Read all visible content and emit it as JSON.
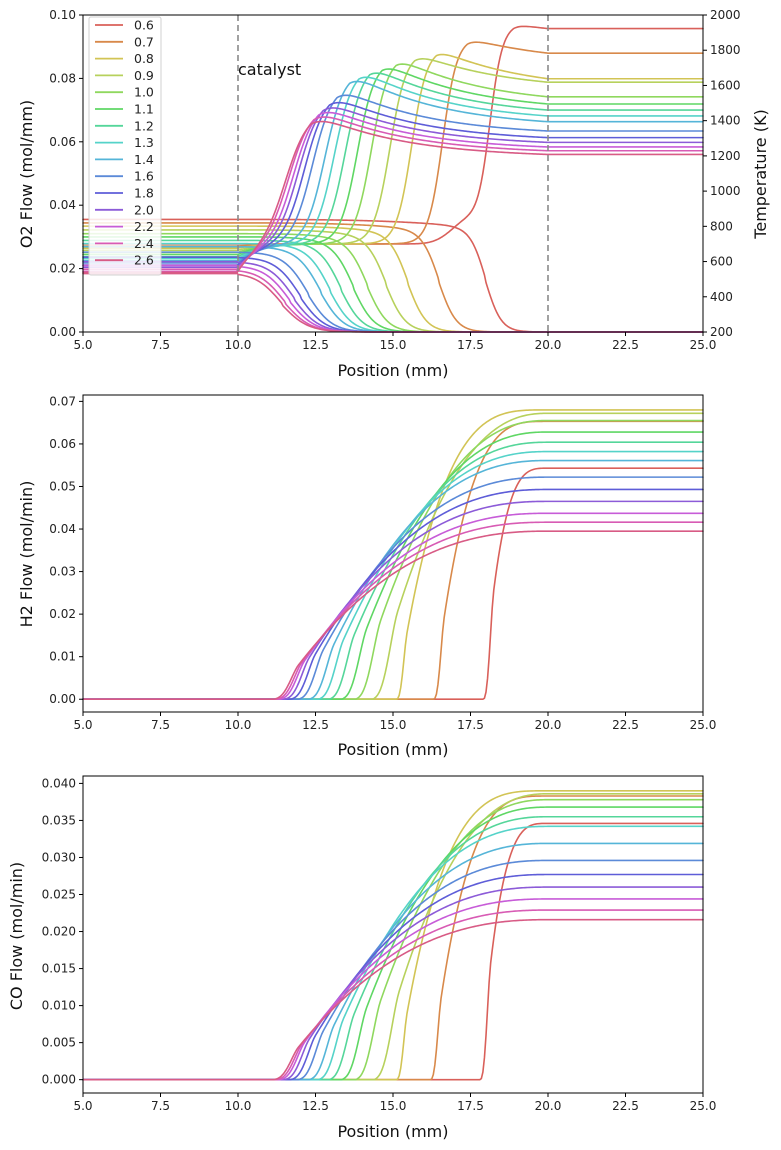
{
  "chart_data": [
    {
      "type": "line",
      "xlabel": "Position (mm)",
      "ylabel": "O2 Flow (mol/mm)",
      "y2label": "Temperature (K)",
      "xlim": [
        5,
        25
      ],
      "ylim": [
        0,
        0.1
      ],
      "y2lim": [
        200,
        2000
      ],
      "xticks": [
        "5.0",
        "7.5",
        "10.0",
        "12.5",
        "15.0",
        "17.5",
        "20.0",
        "22.5",
        "25.0"
      ],
      "yticks": [
        "0.00",
        "0.02",
        "0.04",
        "0.06",
        "0.08",
        "0.10"
      ],
      "y2ticks": [
        "200",
        "400",
        "600",
        "800",
        "1000",
        "1200",
        "1400",
        "1600",
        "1800",
        "2000"
      ],
      "vlines": [
        10,
        20
      ],
      "annotation": "catalyst",
      "legend_position": "upper-left",
      "series": [
        {
          "name": "0.6",
          "color": "#d9605a",
          "o2_inlet": 0.0355,
          "ignition": 18.0,
          "steep": 4.0,
          "temp_inlet": 700,
          "temp_peak": 1950,
          "temp_end": 1865
        },
        {
          "name": "0.7",
          "color": "#d8894a",
          "o2_inlet": 0.0344,
          "ignition": 16.5,
          "steep": 3.6,
          "temp_inlet": 688,
          "temp_peak": 1870,
          "temp_end": 1725
        },
        {
          "name": "0.8",
          "color": "#d2c455",
          "o2_inlet": 0.0334,
          "ignition": 15.5,
          "steep": 3.4,
          "temp_inlet": 676,
          "temp_peak": 1810,
          "temp_end": 1570
        },
        {
          "name": "0.9",
          "color": "#b7d15c",
          "o2_inlet": 0.0322,
          "ignition": 14.8,
          "steep": 3.2,
          "temp_inlet": 664,
          "temp_peak": 1788,
          "temp_end": 1570
        },
        {
          "name": "1.0",
          "color": "#8fd85e",
          "o2_inlet": 0.031,
          "ignition": 14.2,
          "steep": 3.1,
          "temp_inlet": 652,
          "temp_peak": 1765,
          "temp_end": 1485
        },
        {
          "name": "1.1",
          "color": "#5fd764",
          "o2_inlet": 0.03,
          "ignition": 13.75,
          "steep": 3.0,
          "temp_inlet": 640,
          "temp_peak": 1740,
          "temp_end": 1450
        },
        {
          "name": "1.2",
          "color": "#55d69a",
          "o2_inlet": 0.0289,
          "ignition": 13.35,
          "steep": 2.9,
          "temp_inlet": 628,
          "temp_peak": 1720,
          "temp_end": 1420
        },
        {
          "name": "1.3",
          "color": "#55d3c9",
          "o2_inlet": 0.0279,
          "ignition": 13.0,
          "steep": 2.8,
          "temp_inlet": 616,
          "temp_peak": 1700,
          "temp_end": 1390
        },
        {
          "name": "1.4",
          "color": "#55b5d8",
          "o2_inlet": 0.0269,
          "ignition": 12.7,
          "steep": 2.7,
          "temp_inlet": 604,
          "temp_peak": 1680,
          "temp_end": 1360
        },
        {
          "name": "1.6",
          "color": "#5b8ad8",
          "o2_inlet": 0.0252,
          "ignition": 12.3,
          "steep": 2.6,
          "temp_inlet": 592,
          "temp_peak": 1600,
          "temp_end": 1315
        },
        {
          "name": "1.8",
          "color": "#5e5dd8",
          "o2_inlet": 0.0236,
          "ignition": 12.05,
          "steep": 2.5,
          "temp_inlet": 580,
          "temp_peak": 1560,
          "temp_end": 1280
        },
        {
          "name": "2.0",
          "color": "#8c5bd8",
          "o2_inlet": 0.0222,
          "ignition": 11.85,
          "steep": 2.45,
          "temp_inlet": 568,
          "temp_peak": 1530,
          "temp_end": 1255
        },
        {
          "name": "2.2",
          "color": "#c75cd8",
          "o2_inlet": 0.021,
          "ignition": 11.7,
          "steep": 2.4,
          "temp_inlet": 556,
          "temp_peak": 1505,
          "temp_end": 1230
        },
        {
          "name": "2.4",
          "color": "#d85bb4",
          "o2_inlet": 0.0198,
          "ignition": 11.55,
          "steep": 2.35,
          "temp_inlet": 544,
          "temp_peak": 1480,
          "temp_end": 1210
        },
        {
          "name": "2.6",
          "color": "#d85b85",
          "o2_inlet": 0.0188,
          "ignition": 11.45,
          "steep": 2.3,
          "temp_inlet": 532,
          "temp_peak": 1455,
          "temp_end": 1190
        }
      ]
    },
    {
      "type": "line",
      "xlabel": "Position (mm)",
      "ylabel": "H2 Flow (mol/min)",
      "xlim": [
        5,
        25
      ],
      "ylim": [
        -0.003,
        0.0715
      ],
      "xticks": [
        "5.0",
        "7.5",
        "10.0",
        "12.5",
        "15.0",
        "17.5",
        "20.0",
        "22.5",
        "25.0"
      ],
      "yticks": [
        "0.00",
        "0.01",
        "0.02",
        "0.03",
        "0.04",
        "0.05",
        "0.06",
        "0.07"
      ],
      "series": [
        {
          "name": "0.6",
          "color": "#d9605a",
          "start": 17.9,
          "final": 0.0543
        },
        {
          "name": "0.7",
          "color": "#d8894a",
          "start": 16.3,
          "final": 0.0653
        },
        {
          "name": "0.8",
          "color": "#d2c455",
          "start": 15.1,
          "final": 0.068
        },
        {
          "name": "0.9",
          "color": "#b7d15c",
          "start": 14.35,
          "final": 0.0672
        },
        {
          "name": "1.0",
          "color": "#8fd85e",
          "start": 13.8,
          "final": 0.0655
        },
        {
          "name": "1.1",
          "color": "#5fd764",
          "start": 13.35,
          "final": 0.0628
        },
        {
          "name": "1.2",
          "color": "#55d69a",
          "start": 12.95,
          "final": 0.0604
        },
        {
          "name": "1.3",
          "color": "#55d3c9",
          "start": 12.6,
          "final": 0.0582
        },
        {
          "name": "1.4",
          "color": "#55b5d8",
          "start": 12.3,
          "final": 0.0561
        },
        {
          "name": "1.6",
          "color": "#5b8ad8",
          "start": 11.95,
          "final": 0.0522
        },
        {
          "name": "1.8",
          "color": "#5e5dd8",
          "start": 11.7,
          "final": 0.0493
        },
        {
          "name": "2.0",
          "color": "#8c5bd8",
          "start": 11.5,
          "final": 0.0465
        },
        {
          "name": "2.2",
          "color": "#c75cd8",
          "start": 11.35,
          "final": 0.0437
        },
        {
          "name": "2.4",
          "color": "#d85bb4",
          "start": 11.25,
          "final": 0.0416
        },
        {
          "name": "2.6",
          "color": "#d85b85",
          "start": 11.15,
          "final": 0.0395
        }
      ]
    },
    {
      "type": "line",
      "xlabel": "Position (mm)",
      "ylabel": "CO Flow (mol/min)",
      "xlim": [
        5,
        25
      ],
      "ylim": [
        -0.0018,
        0.041
      ],
      "xticks": [
        "5.0",
        "7.5",
        "10.0",
        "12.5",
        "15.0",
        "17.5",
        "20.0",
        "22.5",
        "25.0"
      ],
      "yticks": [
        "0.000",
        "0.005",
        "0.010",
        "0.015",
        "0.020",
        "0.025",
        "0.030",
        "0.035",
        "0.040"
      ],
      "series": [
        {
          "name": "0.6",
          "color": "#d9605a",
          "start": 17.8,
          "final": 0.0346
        },
        {
          "name": "0.7",
          "color": "#d8894a",
          "start": 16.2,
          "final": 0.0383
        },
        {
          "name": "0.8",
          "color": "#d2c455",
          "start": 15.1,
          "final": 0.039
        },
        {
          "name": "0.9",
          "color": "#b7d15c",
          "start": 14.4,
          "final": 0.0386
        },
        {
          "name": "1.0",
          "color": "#8fd85e",
          "start": 13.8,
          "final": 0.0378
        },
        {
          "name": "1.1",
          "color": "#5fd764",
          "start": 13.35,
          "final": 0.0368
        },
        {
          "name": "1.2",
          "color": "#55d69a",
          "start": 12.95,
          "final": 0.0355
        },
        {
          "name": "1.3",
          "color": "#55d3c9",
          "start": 12.6,
          "final": 0.0342
        },
        {
          "name": "1.4",
          "color": "#55b5d8",
          "start": 12.3,
          "final": 0.0319
        },
        {
          "name": "1.6",
          "color": "#5b8ad8",
          "start": 11.95,
          "final": 0.0296
        },
        {
          "name": "1.8",
          "color": "#5e5dd8",
          "start": 11.7,
          "final": 0.0277
        },
        {
          "name": "2.0",
          "color": "#8c5bd8",
          "start": 11.5,
          "final": 0.026
        },
        {
          "name": "2.2",
          "color": "#c75cd8",
          "start": 11.35,
          "final": 0.0244
        },
        {
          "name": "2.4",
          "color": "#d85bb4",
          "start": 11.25,
          "final": 0.0229
        },
        {
          "name": "2.6",
          "color": "#d85b85",
          "start": 11.15,
          "final": 0.0216
        }
      ]
    }
  ]
}
